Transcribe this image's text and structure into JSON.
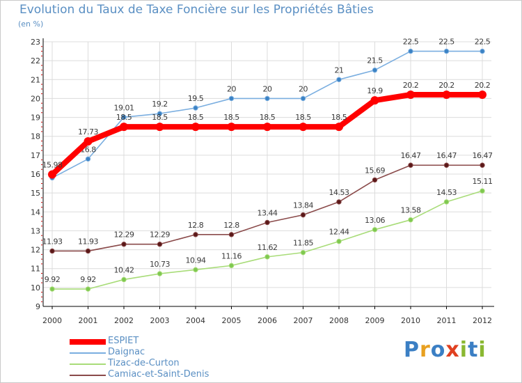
{
  "header": {
    "title": "Evolution du Taux de Taxe Foncière sur les Propriétés Bâties",
    "unit": "(en %)"
  },
  "colors": {
    "title": "#5a8fc3",
    "axis": "#000000",
    "grid": "#dcdcdc"
  },
  "logo": {
    "text": "Proxiti",
    "letters": [
      {
        "ch": "P",
        "color": "#3b7fc4"
      },
      {
        "ch": "r",
        "color": "#e8a020"
      },
      {
        "ch": "o",
        "color": "#3b7fc4"
      },
      {
        "ch": "x",
        "color": "#e04020"
      },
      {
        "ch": "i",
        "color": "#8ab832"
      },
      {
        "ch": "t",
        "color": "#3b7fc4"
      },
      {
        "ch": "i",
        "color": "#8ab832"
      }
    ]
  },
  "chart_data": {
    "type": "line",
    "title": "Evolution du Taux de Taxe Foncière sur les Propriétés Bâties",
    "ylabel": "(en %)",
    "x": [
      "2000",
      "2001",
      "2002",
      "2003",
      "2004",
      "2005",
      "2006",
      "2007",
      "2008",
      "2009",
      "2010",
      "2011",
      "2012"
    ],
    "ylim": [
      9,
      23
    ],
    "yticks": [
      9,
      10,
      11,
      12,
      13,
      14,
      15,
      16,
      17,
      18,
      19,
      20,
      21,
      22,
      23
    ],
    "grid": true,
    "legend_position": "bottom-left",
    "series": [
      {
        "name": "ESPIET",
        "color": "#ff0000",
        "style": "thick",
        "values": [
          15.98,
          17.73,
          18.5,
          18.5,
          18.5,
          18.5,
          18.5,
          18.5,
          18.5,
          19.9,
          20.2,
          20.2,
          20.2
        ],
        "labels": [
          "15.98",
          "17.73",
          "18.5",
          "18.5",
          "18.5",
          "18.5",
          "18.5",
          "18.5",
          "18.5",
          "19.9",
          "20.2",
          "20.2",
          "20.2"
        ]
      },
      {
        "name": "Daignac",
        "color": "#7aaee0",
        "marker": "#3b82c4",
        "style": "thin",
        "values": [
          15.8,
          16.8,
          19.01,
          19.2,
          19.5,
          20,
          20,
          20,
          21,
          21.5,
          22.5,
          22.5,
          22.5
        ],
        "labels": [
          "",
          "16.8",
          "19.01",
          "19.2",
          "19.5",
          "20",
          "20",
          "20",
          "21",
          "21.5",
          "22.5",
          "22.5",
          "22.5"
        ]
      },
      {
        "name": "Tizac-de-Curton",
        "color": "#a8dc78",
        "marker": "#7ec850",
        "style": "thin",
        "values": [
          9.92,
          9.92,
          10.42,
          10.73,
          10.94,
          11.16,
          11.62,
          11.85,
          12.44,
          13.06,
          13.58,
          14.53,
          15.11
        ],
        "labels": [
          "9.92",
          "9.92",
          "10.42",
          "10.73",
          "10.94",
          "11.16",
          "11.62",
          "11.85",
          "12.44",
          "13.06",
          "13.58",
          "14.53",
          "15.11"
        ]
      },
      {
        "name": "Camiac-et-Saint-Denis",
        "color": "#8a4a4a",
        "marker": "#5a1818",
        "style": "thin",
        "values": [
          11.93,
          11.93,
          12.29,
          12.29,
          12.8,
          12.8,
          13.44,
          13.84,
          14.53,
          15.69,
          16.47,
          16.47,
          16.47
        ],
        "labels": [
          "11.93",
          "11.93",
          "12.29",
          "12.29",
          "12.8",
          "12.8",
          "13.44",
          "13.84",
          "14.53",
          "15.69",
          "16.47",
          "16.47",
          "16.47"
        ]
      }
    ]
  }
}
